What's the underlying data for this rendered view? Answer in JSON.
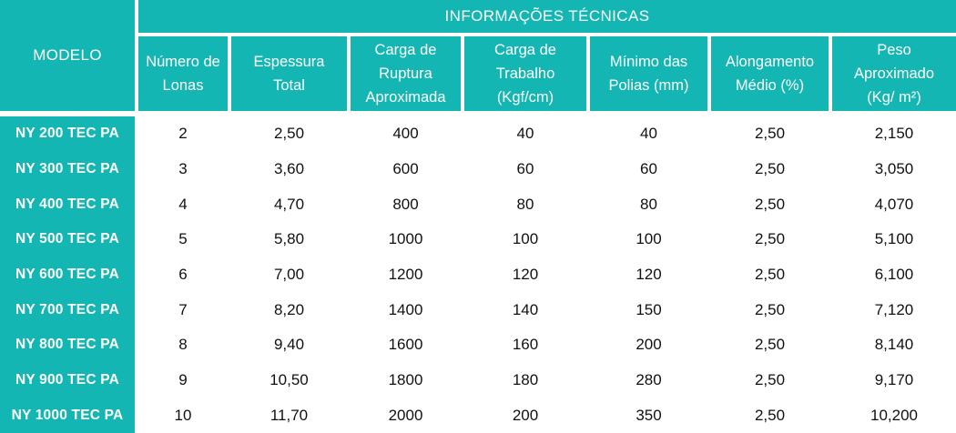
{
  "header": {
    "group": "INFORMAÇÕES TÉCNICAS",
    "model": "MODELO",
    "columns": [
      "Número de\nLonas",
      "Espessura\nTotal",
      "Carga de\nRuptura\nAproximada",
      "Carga de\nTrabalho\n(Kgf/cm)",
      "Mínimo das\nPolias (mm)",
      "Alongamento\nMédio (%)",
      "Peso\nAproximado\n(Kg/ m²)"
    ]
  },
  "rows": [
    {
      "model": "NY 200 TEC PA",
      "values": [
        "2",
        "2,50",
        "400",
        "40",
        "40",
        "2,50",
        "2,150"
      ]
    },
    {
      "model": "NY 300 TEC PA",
      "values": [
        "3",
        "3,60",
        "600",
        "60",
        "60",
        "2,50",
        "3,050"
      ]
    },
    {
      "model": "NY 400 TEC PA",
      "values": [
        "4",
        "4,70",
        "800",
        "80",
        "80",
        "2,50",
        "4,070"
      ]
    },
    {
      "model": "NY 500 TEC PA",
      "values": [
        "5",
        "5,80",
        "1000",
        "100",
        "100",
        "2,50",
        "5,100"
      ]
    },
    {
      "model": "NY 600 TEC PA",
      "values": [
        "6",
        "7,00",
        "1200",
        "120",
        "120",
        "2,50",
        "6,100"
      ]
    },
    {
      "model": "NY 700 TEC PA",
      "values": [
        "7",
        "8,20",
        "1400",
        "140",
        "150",
        "2,50",
        "7,120"
      ]
    },
    {
      "model": "NY 800 TEC PA",
      "values": [
        "8",
        "9,40",
        "1600",
        "160",
        "200",
        "2,50",
        "8,140"
      ]
    },
    {
      "model": "NY 900 TEC PA",
      "values": [
        "9",
        "10,50",
        "1800",
        "180",
        "280",
        "2,50",
        "9,170"
      ]
    },
    {
      "model": "NY 1000 TEC PA",
      "values": [
        "10",
        "11,70",
        "2000",
        "200",
        "350",
        "2,50",
        "10,200"
      ]
    }
  ],
  "colors": {
    "teal": "#13b6b2",
    "header_text": "#ffffff",
    "body_text": "#111111",
    "gap": "#ffffff"
  }
}
